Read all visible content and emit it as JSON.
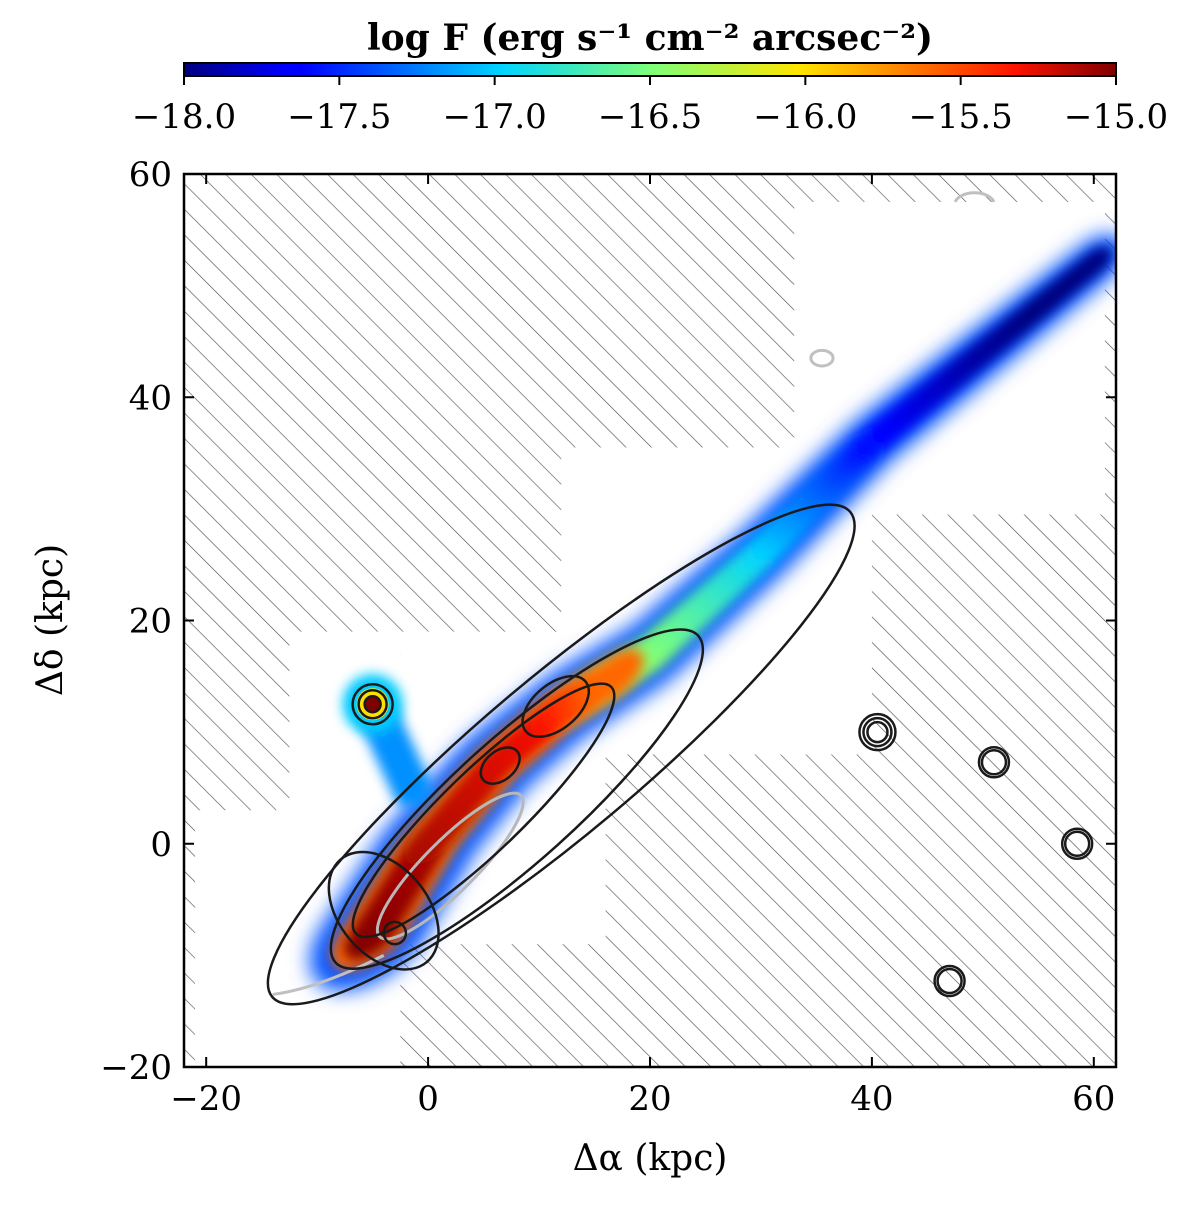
{
  "chart_data": {
    "type": "heatmap",
    "title": "",
    "xlabel": "Δα (kpc)",
    "ylabel": "Δδ (kpc)",
    "xlim": [
      -22,
      62
    ],
    "ylim": [
      -20,
      60
    ],
    "xticks": [
      -20,
      0,
      20,
      40,
      60
    ],
    "yticks": [
      -20,
      0,
      20,
      40,
      60
    ],
    "xtick_labels": [
      "−20",
      "0",
      "20",
      "40",
      "60"
    ],
    "ytick_labels": [
      "−20",
      "0",
      "20",
      "40",
      "60"
    ],
    "grid": false,
    "legend": "none",
    "colorbar": {
      "label": "log F (erg s⁻¹ cm⁻² arcsec⁻²)",
      "range": [
        -18.0,
        -15.0
      ],
      "ticks": [
        -18.0,
        -17.5,
        -17.0,
        -16.5,
        -16.0,
        -15.5,
        -15.0
      ],
      "tick_labels": [
        "−18.0",
        "−17.5",
        "−17.0",
        "−16.5",
        "−16.0",
        "−15.5",
        "−15.0"
      ],
      "colormap": "jet",
      "placement": "top"
    },
    "emission_tail": {
      "description_points_kpc": [
        {
          "x": -5,
          "y": -8,
          "logF": -15.0
        },
        {
          "x": 0,
          "y": 0,
          "logF": -15.1
        },
        {
          "x": 6,
          "y": 7,
          "logF": -15.2
        },
        {
          "x": 12,
          "y": 12,
          "logF": -15.3
        },
        {
          "x": 20,
          "y": 17,
          "logF": -15.8
        },
        {
          "x": 30,
          "y": 26,
          "logF": -16.3
        },
        {
          "x": 40,
          "y": 36,
          "logF": -17.0
        },
        {
          "x": 50,
          "y": 44,
          "logF": -17.3
        },
        {
          "x": 60,
          "y": 52,
          "logF": -17.5
        }
      ],
      "companion_knot": {
        "x": -5,
        "y": 12.5,
        "logF": -15.0
      }
    },
    "black_contours": [
      {
        "level": 1,
        "cx": 12,
        "cy": 8,
        "rx": 34,
        "ry": 7,
        "angle_deg": 40
      },
      {
        "level": 2,
        "cx": 8,
        "cy": 4,
        "rx": 22,
        "ry": 5.5,
        "angle_deg": 42
      },
      {
        "level": 3,
        "cx": 5,
        "cy": 3,
        "rx": 16,
        "ry": 3.6,
        "angle_deg": 44
      }
    ],
    "black_contour_peaks": [
      {
        "x": -4,
        "y": -6,
        "rx": 4,
        "ry": 6
      },
      {
        "x": 11.5,
        "y": 12.3,
        "rx": 3.5,
        "ry": 2
      },
      {
        "x": 6.5,
        "y": 7,
        "rx": 2,
        "ry": 1.3
      },
      {
        "x": -3,
        "y": -8,
        "rx": 1,
        "ry": 1
      }
    ],
    "point_sources": [
      {
        "x": -5,
        "y": 12.5
      },
      {
        "x": 40.5,
        "y": 10
      },
      {
        "x": 51,
        "y": 7.3
      },
      {
        "x": 58.5,
        "y": 0
      },
      {
        "x": 47,
        "y": -12.3
      }
    ],
    "observed_footprints_kpc": [
      {
        "x0": -21,
        "x1": -12.5,
        "y0": -20,
        "y1": 3
      },
      {
        "x0": -12.5,
        "x1": -2.5,
        "y0": -20,
        "y1": 19
      },
      {
        "x0": -2.5,
        "x1": 16,
        "y0": -9,
        "y1": 19
      },
      {
        "x0": 12,
        "x1": 40,
        "y0": 8,
        "y1": 35.5
      },
      {
        "x0": 33,
        "x1": 61,
        "y0": 29.5,
        "y1": 57.5
      }
    ]
  }
}
